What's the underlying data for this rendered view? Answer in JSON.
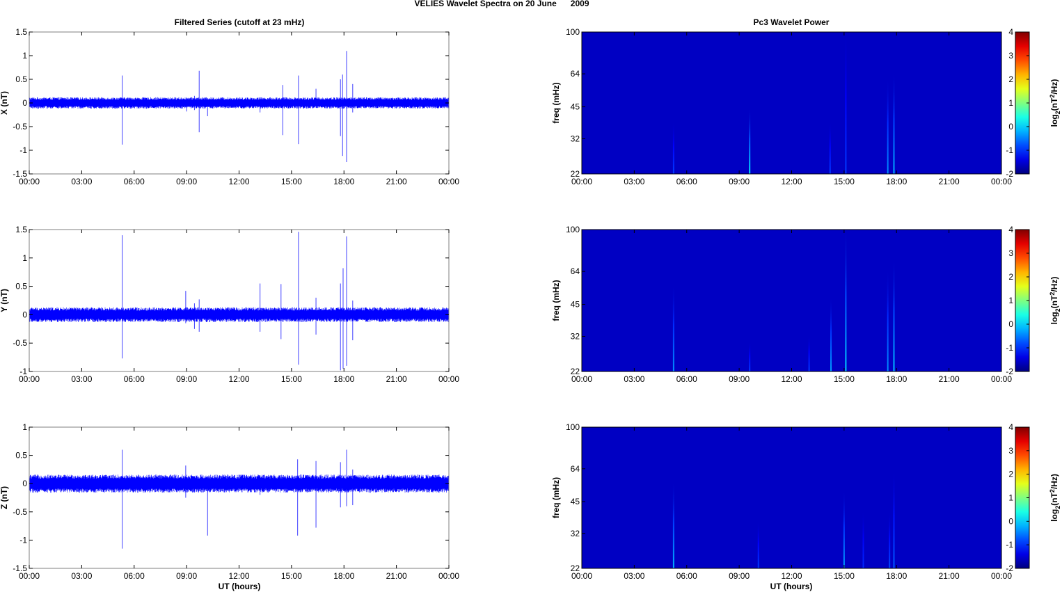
{
  "figure": {
    "title": "VELIES Wavelet Spectra on 20 June      2009",
    "left_title": "Filtered Series (cutoff at 23 mHz)",
    "right_title": "Pc3 Wavelet Power",
    "xlabel": "UT (hours)"
  },
  "colors": {
    "series": "#0000ff",
    "spectrogram_background": "#00008f",
    "axes": "#000000"
  },
  "chart_data": [
    {
      "type": "line",
      "component": "X",
      "ylabel": "X (nT)",
      "xlim": [
        0,
        24
      ],
      "ylim": [
        -1.5,
        1.5
      ],
      "x_ticks": [
        "00:00",
        "03:00",
        "06:00",
        "09:00",
        "12:00",
        "15:00",
        "18:00",
        "21:00",
        "00:00"
      ],
      "y_ticks": [
        "-1.5",
        "-1",
        "-0.5",
        "0",
        "0.5",
        "1",
        "1.5"
      ],
      "y_tick_values": [
        -1.5,
        -1,
        -0.5,
        0,
        0.5,
        1,
        1.5
      ],
      "noise_band": 0.12,
      "spikes": [
        {
          "x": 5.32,
          "max": 0.58,
          "min": -0.88
        },
        {
          "x": 9.0,
          "max": 0.1,
          "min": -0.18
        },
        {
          "x": 9.45,
          "max": 0.15,
          "min": -0.15
        },
        {
          "x": 9.72,
          "max": 0.68,
          "min": -0.62
        },
        {
          "x": 10.2,
          "max": 0.1,
          "min": -0.28
        },
        {
          "x": 13.2,
          "max": 0.12,
          "min": -0.2
        },
        {
          "x": 14.5,
          "max": 0.38,
          "min": -0.68
        },
        {
          "x": 15.4,
          "max": 0.58,
          "min": -0.87
        },
        {
          "x": 16.4,
          "max": 0.3,
          "min": -0.1
        },
        {
          "x": 17.8,
          "max": 0.5,
          "min": -0.7
        },
        {
          "x": 17.92,
          "max": 0.6,
          "min": -1.12
        },
        {
          "x": 18.15,
          "max": 1.1,
          "min": -1.25
        },
        {
          "x": 18.5,
          "max": 0.4,
          "min": -0.2
        }
      ]
    },
    {
      "type": "line",
      "component": "Y",
      "ylabel": "Y (nT)",
      "xlim": [
        0,
        24
      ],
      "ylim": [
        -1,
        1.5
      ],
      "x_ticks": [
        "00:00",
        "03:00",
        "06:00",
        "09:00",
        "12:00",
        "15:00",
        "18:00",
        "21:00",
        "00:00"
      ],
      "y_ticks": [
        "-1",
        "-0.5",
        "0",
        "0.5",
        "1",
        "1.5"
      ],
      "y_tick_values": [
        -1,
        -0.5,
        0,
        0.5,
        1,
        1.5
      ],
      "noise_band": 0.13,
      "spikes": [
        {
          "x": 5.32,
          "max": 1.4,
          "min": -0.77
        },
        {
          "x": 8.95,
          "max": 0.42,
          "min": -0.15
        },
        {
          "x": 9.45,
          "max": 0.2,
          "min": -0.25
        },
        {
          "x": 9.72,
          "max": 0.27,
          "min": -0.3
        },
        {
          "x": 13.2,
          "max": 0.55,
          "min": -0.3
        },
        {
          "x": 14.4,
          "max": 0.54,
          "min": -0.43
        },
        {
          "x": 15.4,
          "max": 1.46,
          "min": -0.88
        },
        {
          "x": 16.4,
          "max": 0.3,
          "min": -0.35
        },
        {
          "x": 17.8,
          "max": 0.55,
          "min": -0.98
        },
        {
          "x": 17.95,
          "max": 0.82,
          "min": -0.95
        },
        {
          "x": 18.15,
          "max": 1.38,
          "min": -0.9
        },
        {
          "x": 18.5,
          "max": 0.25,
          "min": -0.45
        }
      ]
    },
    {
      "type": "line",
      "component": "Z",
      "ylabel": "Z (nT)",
      "xlim": [
        0,
        24
      ],
      "ylim": [
        -1.5,
        1
      ],
      "x_ticks": [
        "00:00",
        "03:00",
        "06:00",
        "09:00",
        "12:00",
        "15:00",
        "18:00",
        "21:00",
        "00:00"
      ],
      "y_ticks": [
        "-1.5",
        "-1",
        "-0.5",
        "0",
        "0.5",
        "1"
      ],
      "y_tick_values": [
        -1.5,
        -1,
        -0.5,
        0,
        0.5,
        1
      ],
      "noise_band": 0.16,
      "spikes": [
        {
          "x": 5.32,
          "max": 0.6,
          "min": -1.15
        },
        {
          "x": 8.95,
          "max": 0.32,
          "min": -0.25
        },
        {
          "x": 10.2,
          "max": 0.1,
          "min": -0.92
        },
        {
          "x": 13.2,
          "max": 0.15,
          "min": -0.2
        },
        {
          "x": 15.35,
          "max": 0.43,
          "min": -0.92
        },
        {
          "x": 16.4,
          "max": 0.4,
          "min": -0.78
        },
        {
          "x": 17.8,
          "max": 0.38,
          "min": -0.42
        },
        {
          "x": 18.15,
          "max": 0.6,
          "min": -0.4
        },
        {
          "x": 18.5,
          "max": 0.25,
          "min": -0.38
        }
      ]
    },
    {
      "type": "heatmap",
      "component": "X",
      "ylabel": "freq (mHz)",
      "colorbar_label": "log2(nT²/Hz)",
      "xlim": [
        0,
        24
      ],
      "ylim": [
        22,
        100
      ],
      "yscale": "log",
      "x_ticks": [
        "00:00",
        "03:00",
        "06:00",
        "09:00",
        "12:00",
        "15:00",
        "18:00",
        "21:00",
        "00:00"
      ],
      "y_ticks": [
        "22",
        "32",
        "45",
        "64",
        "100"
      ],
      "y_tick_values": [
        22,
        32,
        45,
        64,
        100
      ],
      "clim": [
        -2,
        4
      ],
      "colorbar_ticks": [
        "-2",
        "-1",
        "0",
        "1",
        "2",
        "3",
        "4"
      ],
      "background_level": -1.6,
      "streaks": [
        {
          "x": 5.25,
          "fmax": 38,
          "level": -0.9
        },
        {
          "x": 9.6,
          "fmax": 44,
          "level": 0.1
        },
        {
          "x": 14.2,
          "fmax": 38,
          "level": -0.9
        },
        {
          "x": 15.1,
          "fmax": 100,
          "level": -0.9
        },
        {
          "x": 17.5,
          "fmax": 60,
          "level": -0.4
        },
        {
          "x": 17.85,
          "fmax": 64,
          "level": -0.2
        }
      ]
    },
    {
      "type": "heatmap",
      "component": "Y",
      "ylabel": "freq (mHz)",
      "colorbar_label": "log2(nT²/Hz)",
      "xlim": [
        0,
        24
      ],
      "ylim": [
        22,
        100
      ],
      "yscale": "log",
      "x_ticks": [
        "00:00",
        "03:00",
        "06:00",
        "09:00",
        "12:00",
        "15:00",
        "18:00",
        "21:00",
        "00:00"
      ],
      "y_ticks": [
        "22",
        "32",
        "45",
        "64",
        "100"
      ],
      "y_tick_values": [
        22,
        32,
        45,
        64,
        100
      ],
      "clim": [
        -2,
        4
      ],
      "colorbar_ticks": [
        "-2",
        "-1",
        "0",
        "1",
        "2",
        "3",
        "4"
      ],
      "background_level": -1.6,
      "streaks": [
        {
          "x": 5.25,
          "fmax": 55,
          "level": -0.4
        },
        {
          "x": 9.6,
          "fmax": 30,
          "level": -0.9
        },
        {
          "x": 13.0,
          "fmax": 32,
          "level": -0.9
        },
        {
          "x": 14.25,
          "fmax": 48,
          "level": -0.3
        },
        {
          "x": 15.1,
          "fmax": 100,
          "level": 0.0
        },
        {
          "x": 17.5,
          "fmax": 64,
          "level": -0.4
        },
        {
          "x": 17.85,
          "fmax": 72,
          "level": -0.1
        }
      ]
    },
    {
      "type": "heatmap",
      "component": "Z",
      "ylabel": "freq (mHz)",
      "colorbar_label": "log2(nT²/Hz)",
      "xlim": [
        0,
        24
      ],
      "ylim": [
        22,
        100
      ],
      "yscale": "log",
      "x_ticks": [
        "00:00",
        "03:00",
        "06:00",
        "09:00",
        "12:00",
        "15:00",
        "18:00",
        "21:00",
        "00:00"
      ],
      "y_ticks": [
        "22",
        "32",
        "45",
        "64",
        "100"
      ],
      "y_tick_values": [
        22,
        32,
        45,
        64,
        100
      ],
      "clim": [
        -2,
        4
      ],
      "colorbar_ticks": [
        "-2",
        "-1",
        "0",
        "1",
        "2",
        "3",
        "4"
      ],
      "background_level": -1.6,
      "streaks": [
        {
          "x": 5.25,
          "fmax": 55,
          "level": -0.2
        },
        {
          "x": 10.1,
          "fmax": 36,
          "level": -0.9
        },
        {
          "x": 15.0,
          "fmax": 50,
          "level": -0.3
        },
        {
          "x": 16.1,
          "fmax": 40,
          "level": -1.0
        },
        {
          "x": 17.6,
          "fmax": 40,
          "level": -0.8
        },
        {
          "x": 17.85,
          "fmax": 62,
          "level": -0.7
        }
      ]
    }
  ]
}
